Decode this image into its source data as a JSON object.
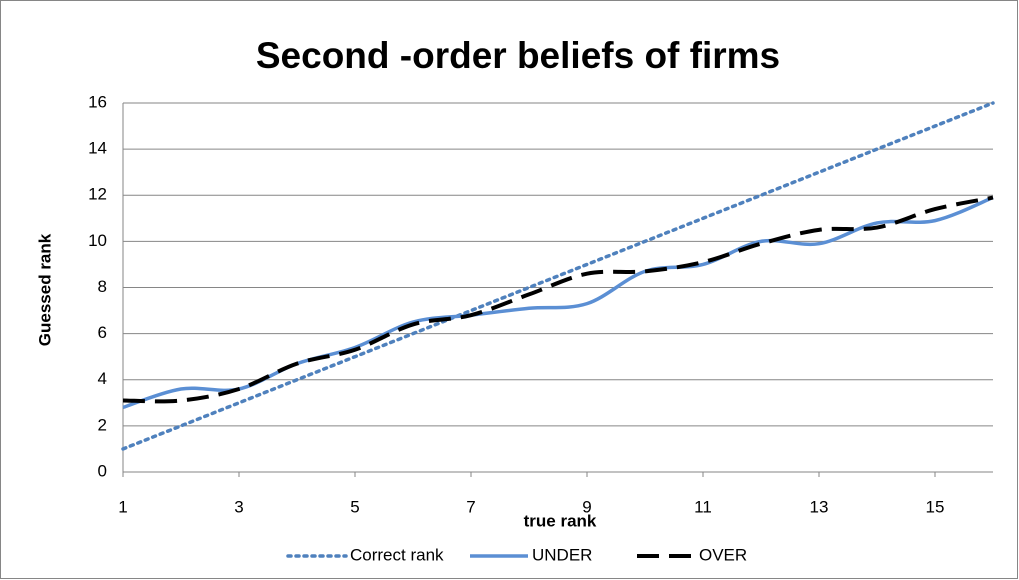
{
  "chart_data": {
    "type": "line",
    "title": "Second -order beliefs of firms",
    "x_label": "true rank",
    "y_label": "Guessed rank",
    "x": [
      1,
      2,
      3,
      4,
      5,
      6,
      7,
      8,
      9,
      10,
      11,
      12,
      13,
      14,
      15,
      16
    ],
    "series": [
      {
        "name": "Correct rank",
        "color": "#4f81bd",
        "dash": "dotted",
        "values": [
          1,
          2,
          3,
          4,
          5,
          6,
          7,
          8,
          9,
          10,
          11,
          12,
          13,
          14,
          15,
          16
        ]
      },
      {
        "name": "UNDER",
        "color": "#5b8fd4",
        "dash": "solid",
        "values": [
          2.8,
          3.6,
          3.6,
          4.7,
          5.4,
          6.5,
          6.8,
          7.1,
          7.3,
          8.7,
          9.0,
          10.0,
          9.9,
          10.8,
          10.9,
          11.9
        ]
      },
      {
        "name": "OVER",
        "color": "#000000",
        "dash": "dashed",
        "values": [
          3.1,
          3.1,
          3.6,
          4.7,
          5.3,
          6.4,
          6.8,
          7.7,
          8.6,
          8.7,
          9.1,
          9.9,
          10.5,
          10.6,
          11.4,
          11.9
        ]
      }
    ],
    "xlim": [
      1,
      16
    ],
    "xticks": [
      1,
      3,
      5,
      7,
      9,
      11,
      13,
      15
    ],
    "ylim": [
      0,
      16
    ],
    "yticks": [
      0,
      2,
      4,
      6,
      8,
      10,
      12,
      14,
      16
    ],
    "grid": true,
    "smooth": true,
    "legend": "bottom"
  }
}
